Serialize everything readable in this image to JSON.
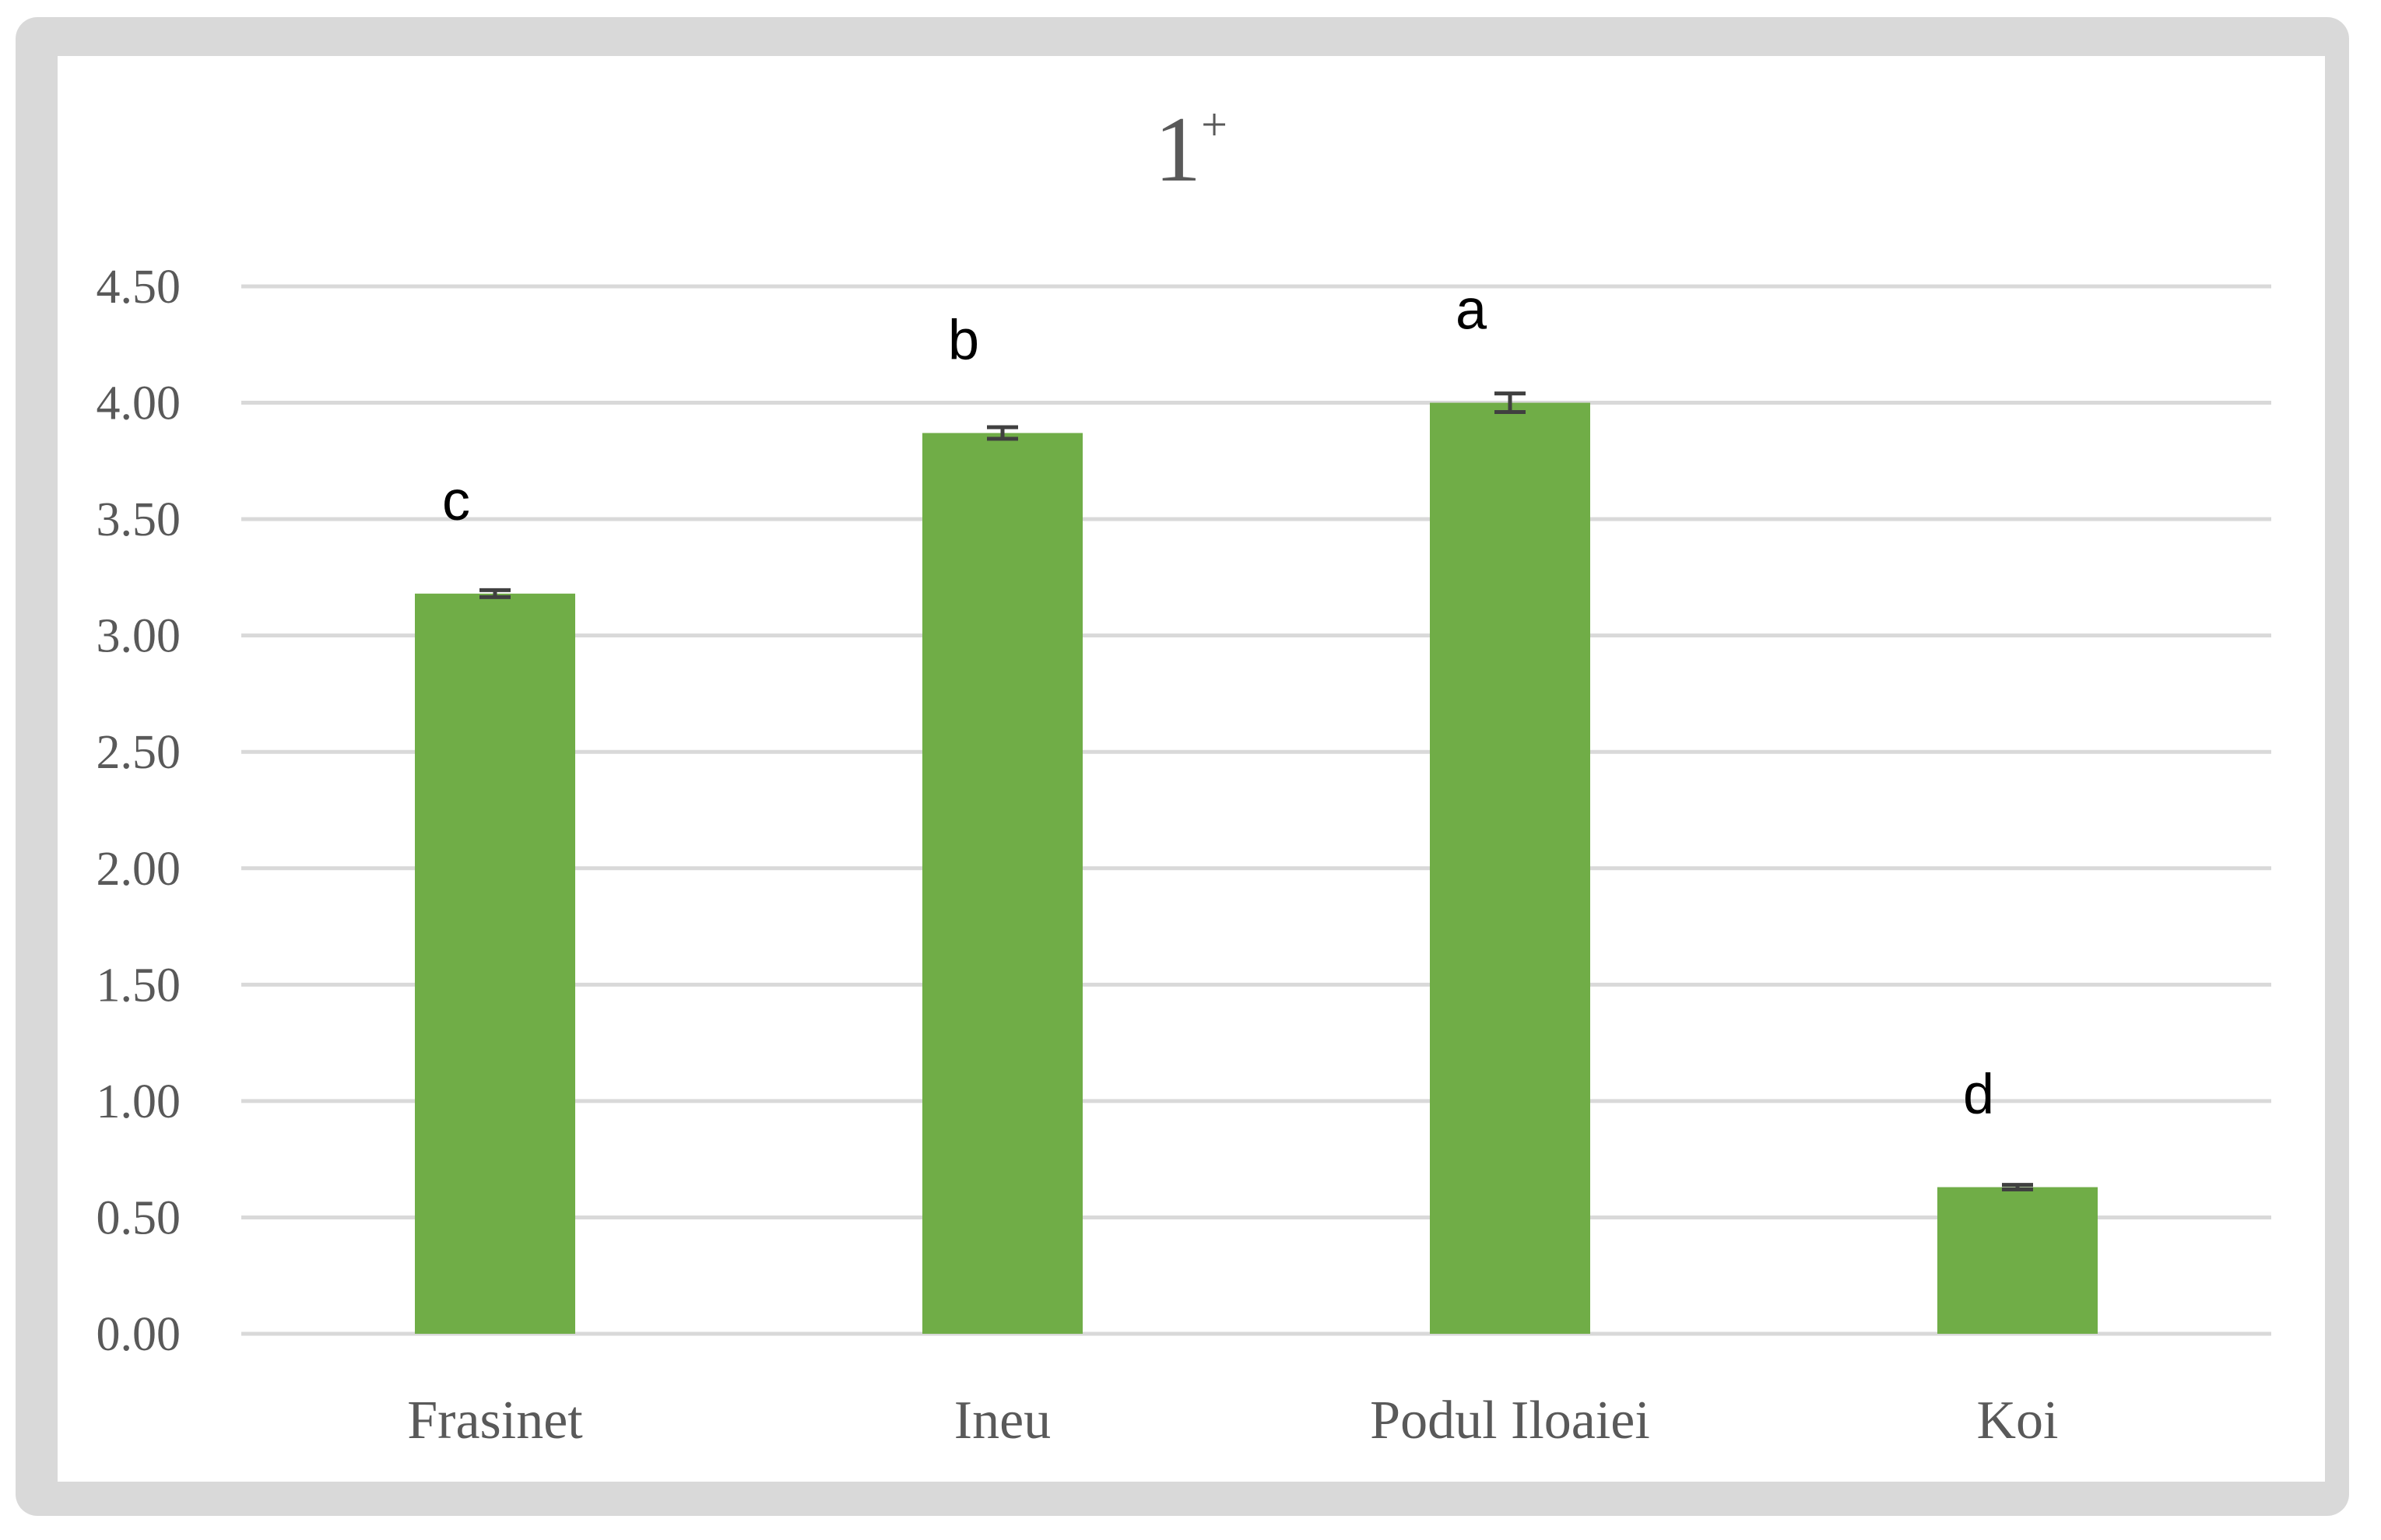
{
  "chart_data": {
    "type": "bar",
    "title": "1",
    "title_superscript": "+",
    "categories": [
      "Frasinet",
      "Ineu",
      "Podul Iloaiei",
      "Koi"
    ],
    "values": [
      3.18,
      3.87,
      4.0,
      0.63
    ],
    "error": [
      0.015,
      0.025,
      0.04,
      0.01
    ],
    "significance_labels": [
      "c",
      "b",
      "a",
      "d"
    ],
    "ylim": [
      0,
      4.5
    ],
    "yticks": [
      "0.00",
      "0.50",
      "1.00",
      "1.50",
      "2.00",
      "2.50",
      "3.00",
      "3.50",
      "4.00",
      "4.50"
    ],
    "ytick_values": [
      0,
      0.5,
      1,
      1.5,
      2,
      2.5,
      3,
      3.5,
      4,
      4.5
    ],
    "grid": true,
    "legend": "none",
    "xlabel": "",
    "ylabel": "",
    "colors": {
      "bar": "#70ad47",
      "grid": "#d9d9d9",
      "error_bar": "#404040",
      "frame": "#d9d9d9"
    }
  }
}
